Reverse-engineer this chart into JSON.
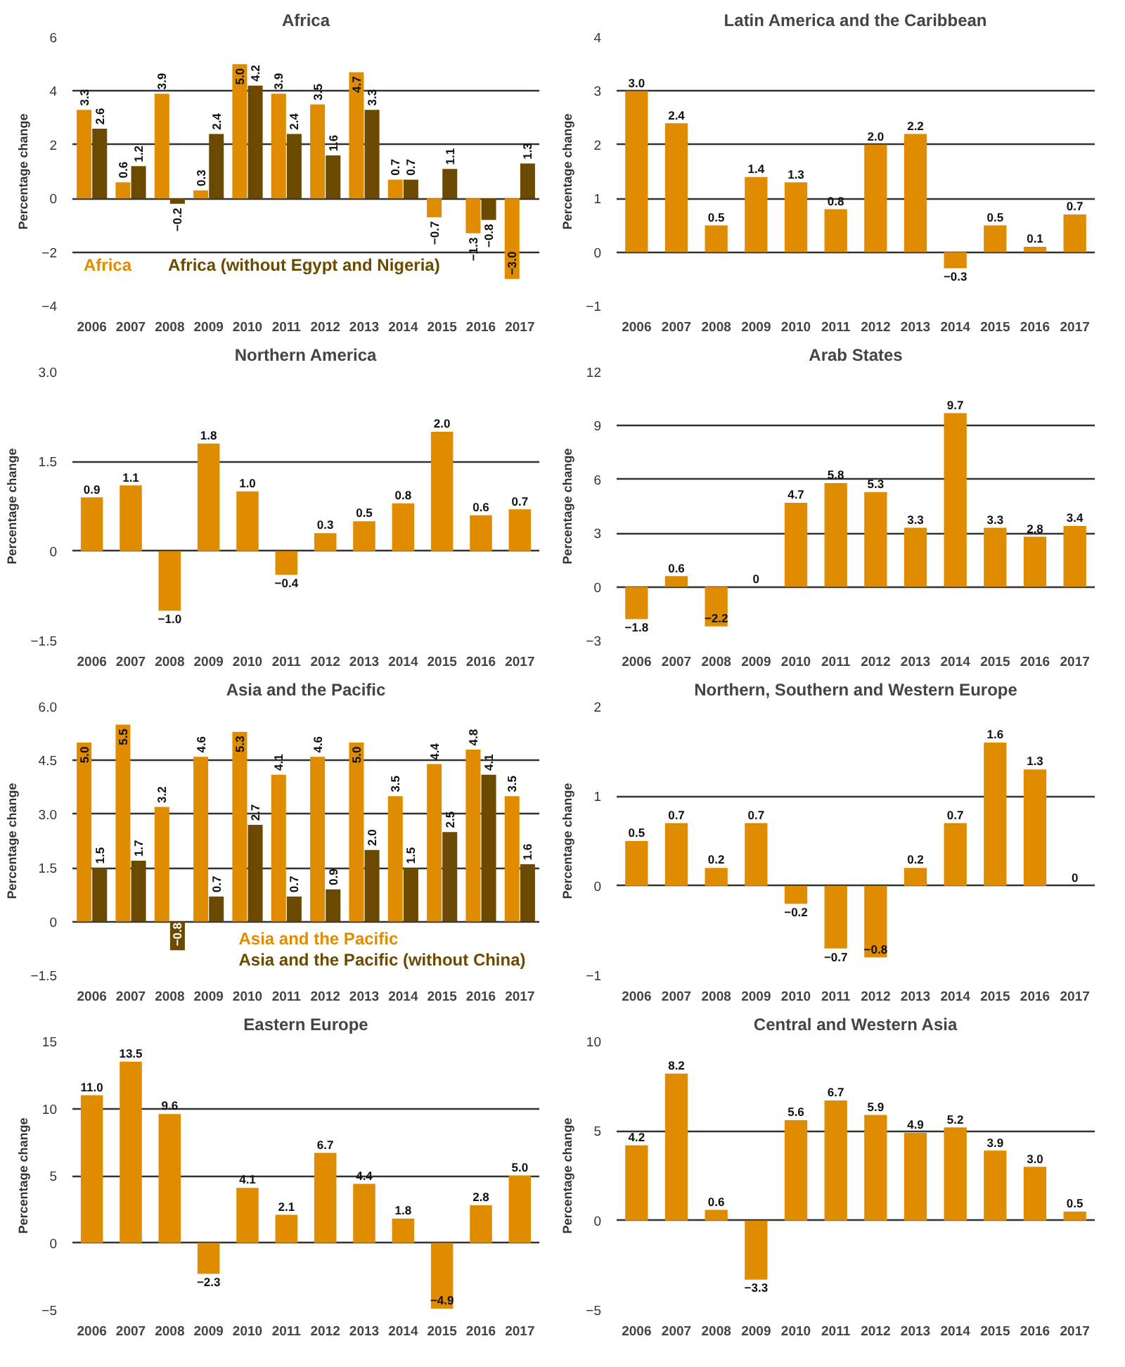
{
  "chart_data": [
    {
      "type": "bar",
      "title": "Africa",
      "ylabel": "Percentage change",
      "categories": [
        "2006",
        "2007",
        "2008",
        "2009",
        "2010",
        "2011",
        "2012",
        "2013",
        "2014",
        "2015",
        "2016",
        "2017"
      ],
      "ylim": [
        -4,
        6
      ],
      "yticks": [
        {
          "value": -4,
          "label": "−4"
        },
        {
          "value": -2,
          "label": "−2"
        },
        0,
        2,
        4,
        6
      ],
      "grid": "y",
      "legend": "bottom left",
      "series": [
        {
          "name": "Africa",
          "color": "#e08c00",
          "values": [
            3.3,
            0.6,
            3.9,
            0.3,
            5.0,
            3.9,
            3.5,
            4.7,
            0.7,
            -0.7,
            -1.3,
            -3.0
          ],
          "value_labels": [
            "3.3",
            "0.6",
            "3.9",
            "0.3",
            "5.0",
            "3.9",
            "3.5",
            "4.7",
            "0.7",
            "−0.7",
            "−1.3",
            "−3.0"
          ]
        },
        {
          "name": "Africa (without Egypt and Nigeria)",
          "color": "#6b4a00",
          "values": [
            2.6,
            1.2,
            -0.2,
            2.4,
            4.2,
            2.4,
            1.6,
            3.3,
            0.7,
            1.1,
            -0.8,
            1.3
          ],
          "value_labels": [
            "2.6",
            "1.2",
            "−0.2",
            "2.4",
            "4.2",
            "2.4",
            "1.6",
            "3.3",
            "0.7",
            "1.1",
            "−0.8",
            "1.3"
          ]
        }
      ]
    },
    {
      "type": "bar",
      "title": "Latin America and the Caribbean",
      "ylabel": "Percentage change",
      "categories": [
        "2006",
        "2007",
        "2008",
        "2009",
        "2010",
        "2011",
        "2012",
        "2013",
        "2014",
        "2015",
        "2016",
        "2017"
      ],
      "ylim": [
        -1,
        4
      ],
      "yticks": [
        {
          "value": -1,
          "label": "−1"
        },
        0,
        1,
        2,
        3,
        4
      ],
      "grid": "y",
      "series": [
        {
          "color": "#e08c00",
          "values": [
            3.0,
            2.4,
            0.5,
            1.4,
            1.3,
            0.8,
            2.0,
            2.2,
            -0.3,
            0.5,
            0.1,
            0.7
          ],
          "value_labels": [
            "3.0",
            "2.4",
            "0.5",
            "1.4",
            "1.3",
            "0.8",
            "2.0",
            "2.2",
            "−0.3",
            "0.5",
            "0.1",
            "0.7"
          ]
        }
      ]
    },
    {
      "type": "bar",
      "title": "Northern America",
      "ylabel": "Percentage change",
      "categories": [
        "2006",
        "2007",
        "2008",
        "2009",
        "2010",
        "2011",
        "2012",
        "2013",
        "2014",
        "2015",
        "2016",
        "2017"
      ],
      "ylim": [
        -1.5,
        3.0
      ],
      "yticks": [
        {
          "value": -1.5,
          "label": "−1.5"
        },
        0,
        1.5,
        {
          "value": 3.0,
          "label": "3.0"
        }
      ],
      "grid": "y",
      "series": [
        {
          "color": "#e08c00",
          "values": [
            0.9,
            1.1,
            -1.0,
            1.8,
            1.0,
            -0.4,
            0.3,
            0.5,
            0.8,
            2.0,
            0.6,
            0.7
          ],
          "value_labels": [
            "0.9",
            "1.1",
            "−1.0",
            "1.8",
            "1.0",
            "−0.4",
            "0.3",
            "0.5",
            "0.8",
            "2.0",
            "0.6",
            "0.7"
          ]
        }
      ]
    },
    {
      "type": "bar",
      "title": "Arab States",
      "ylabel": "Percentage change",
      "categories": [
        "2006",
        "2007",
        "2008",
        "2009",
        "2010",
        "2011",
        "2012",
        "2013",
        "2014",
        "2015",
        "2016",
        "2017"
      ],
      "ylim": [
        -3,
        12
      ],
      "yticks": [
        {
          "value": -3,
          "label": "−3"
        },
        0,
        3,
        6,
        9,
        12
      ],
      "grid": "y",
      "series": [
        {
          "color": "#e08c00",
          "values": [
            -1.8,
            0.6,
            -2.2,
            0,
            4.7,
            5.8,
            5.3,
            3.3,
            9.7,
            3.3,
            2.8,
            3.4
          ],
          "value_labels": [
            "−1.8",
            "0.6",
            "−2.2",
            "0",
            "4.7",
            "5.8",
            "5.3",
            "3.3",
            "9.7",
            "3.3",
            "2.8",
            "3.4"
          ]
        }
      ]
    },
    {
      "type": "bar",
      "title": "Asia and the Pacific",
      "ylabel": "Percentage change",
      "categories": [
        "2006",
        "2007",
        "2008",
        "2009",
        "2010",
        "2011",
        "2012",
        "2013",
        "2014",
        "2015",
        "2016",
        "2017"
      ],
      "ylim": [
        -1.5,
        6.0
      ],
      "yticks": [
        {
          "value": -1.5,
          "label": "−1.5"
        },
        0,
        1.5,
        {
          "value": 3.0,
          "label": "3.0"
        },
        4.5,
        {
          "value": 6.0,
          "label": "6.0"
        }
      ],
      "grid": "y",
      "legend": "bottom",
      "series": [
        {
          "name": "Asia and the Pacific",
          "color": "#e08c00",
          "values": [
            5.0,
            5.5,
            3.2,
            4.6,
            5.3,
            4.1,
            4.6,
            5.0,
            3.5,
            4.4,
            4.8,
            3.5
          ],
          "value_labels": [
            "5.0",
            "5.5",
            "3.2",
            "4.6",
            "5.3",
            "4.1",
            "4.6",
            "5.0",
            "3.5",
            "4.4",
            "4.8",
            "3.5"
          ]
        },
        {
          "name": "Asia and the Pacific (without China)",
          "color": "#6b4a00",
          "values": [
            1.5,
            1.7,
            -0.8,
            0.7,
            2.7,
            0.7,
            0.9,
            2.0,
            1.5,
            2.5,
            4.1,
            1.6
          ],
          "value_labels": [
            "1.5",
            "1.7",
            "−0.8",
            "0.7",
            "2.7",
            "0.7",
            "0.9",
            "2.0",
            "1.5",
            "2.5",
            "4.1",
            "1.6"
          ]
        }
      ]
    },
    {
      "type": "bar",
      "title": "Northern, Southern and Western Europe",
      "ylabel": "Percentage change",
      "categories": [
        "2006",
        "2007",
        "2008",
        "2009",
        "2010",
        "2011",
        "2012",
        "2013",
        "2014",
        "2015",
        "2016",
        "2017"
      ],
      "ylim": [
        -1,
        2
      ],
      "yticks": [
        {
          "value": -1,
          "label": "−1"
        },
        0,
        1,
        2
      ],
      "grid": "y",
      "series": [
        {
          "color": "#e08c00",
          "values": [
            0.5,
            0.7,
            0.2,
            0.7,
            -0.2,
            -0.7,
            -0.8,
            0.2,
            0.7,
            1.6,
            1.3,
            0
          ],
          "value_labels": [
            "0.5",
            "0.7",
            "0.2",
            "0.7",
            "−0.2",
            "−0.7",
            "−0.8",
            "0.2",
            "0.7",
            "1.6",
            "1.3",
            "0"
          ]
        }
      ]
    },
    {
      "type": "bar",
      "title": "Eastern Europe",
      "ylabel": "Percentage change",
      "categories": [
        "2006",
        "2007",
        "2008",
        "2009",
        "2010",
        "2011",
        "2012",
        "2013",
        "2014",
        "2015",
        "2016",
        "2017"
      ],
      "ylim": [
        -5,
        15
      ],
      "yticks": [
        {
          "value": -5,
          "label": "−5"
        },
        0,
        5,
        10,
        15
      ],
      "grid": "y",
      "series": [
        {
          "color": "#e08c00",
          "values": [
            11.0,
            13.5,
            9.6,
            -2.3,
            4.1,
            2.1,
            6.7,
            4.4,
            1.8,
            -4.9,
            2.8,
            5.0
          ],
          "value_labels": [
            "11.0",
            "13.5",
            "9.6",
            "−2.3",
            "4.1",
            "2.1",
            "6.7",
            "4.4",
            "1.8",
            "−4.9",
            "2.8",
            "5.0"
          ]
        }
      ]
    },
    {
      "type": "bar",
      "title": "Central and Western Asia",
      "ylabel": "Percentage change",
      "categories": [
        "2006",
        "2007",
        "2008",
        "2009",
        "2010",
        "2011",
        "2012",
        "2013",
        "2014",
        "2015",
        "2016",
        "2017"
      ],
      "ylim": [
        -5,
        10
      ],
      "yticks": [
        {
          "value": -5,
          "label": "−5"
        },
        0,
        5,
        10
      ],
      "grid": "y",
      "series": [
        {
          "color": "#e08c00",
          "values": [
            4.2,
            8.2,
            0.6,
            -3.3,
            5.6,
            6.7,
            5.9,
            4.9,
            5.2,
            3.9,
            3.0,
            0.5
          ],
          "value_labels": [
            "4.2",
            "8.2",
            "0.6",
            "−3.3",
            "5.6",
            "6.7",
            "5.9",
            "4.9",
            "5.2",
            "3.9",
            "3.0",
            "0.5"
          ]
        }
      ]
    }
  ]
}
